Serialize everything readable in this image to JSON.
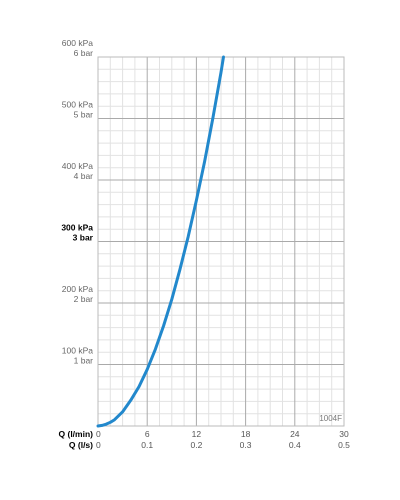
{
  "chart_data": {
    "type": "line",
    "x_primary": {
      "label": "Q (l/min)",
      "ticks": [
        0,
        6,
        12,
        18,
        24,
        30
      ],
      "range": [
        0,
        30
      ]
    },
    "x_secondary": {
      "label": "Q (l/s)",
      "ticks": [
        "0",
        "0.1",
        "0.2",
        "0.3",
        "0.4",
        "0.5"
      ]
    },
    "y": {
      "range": [
        0,
        600
      ],
      "unit": "kPa",
      "ticks": [
        {
          "value": 100,
          "kpa": "100 kPa",
          "bar": "1 bar",
          "bold": false
        },
        {
          "value": 200,
          "kpa": "200 kPa",
          "bar": "2 bar",
          "bold": false
        },
        {
          "value": 300,
          "kpa": "300 kPa",
          "bar": "3 bar",
          "bold": true
        },
        {
          "value": 400,
          "kpa": "400 kPa",
          "bar": "4 bar",
          "bold": false
        },
        {
          "value": 500,
          "kpa": "500 kPa",
          "bar": "5 bar",
          "bold": false
        },
        {
          "value": 600,
          "kpa": "600 kPa",
          "bar": "6 bar",
          "bold": false
        }
      ]
    },
    "grid": true,
    "series": [
      {
        "color": "#2288cc",
        "points": [
          [
            0,
            0
          ],
          [
            0.5,
            1
          ],
          [
            1,
            3
          ],
          [
            1.5,
            6
          ],
          [
            2,
            10
          ],
          [
            3,
            23
          ],
          [
            4,
            42
          ],
          [
            5,
            64
          ],
          [
            6,
            92
          ],
          [
            7,
            125
          ],
          [
            8,
            163
          ],
          [
            9,
            206
          ],
          [
            10,
            255
          ],
          [
            11,
            308
          ],
          [
            12,
            367
          ],
          [
            13,
            430
          ],
          [
            14,
            500
          ],
          [
            15,
            575
          ],
          [
            15.3,
            600
          ]
        ]
      }
    ],
    "annotation": "1004F"
  }
}
